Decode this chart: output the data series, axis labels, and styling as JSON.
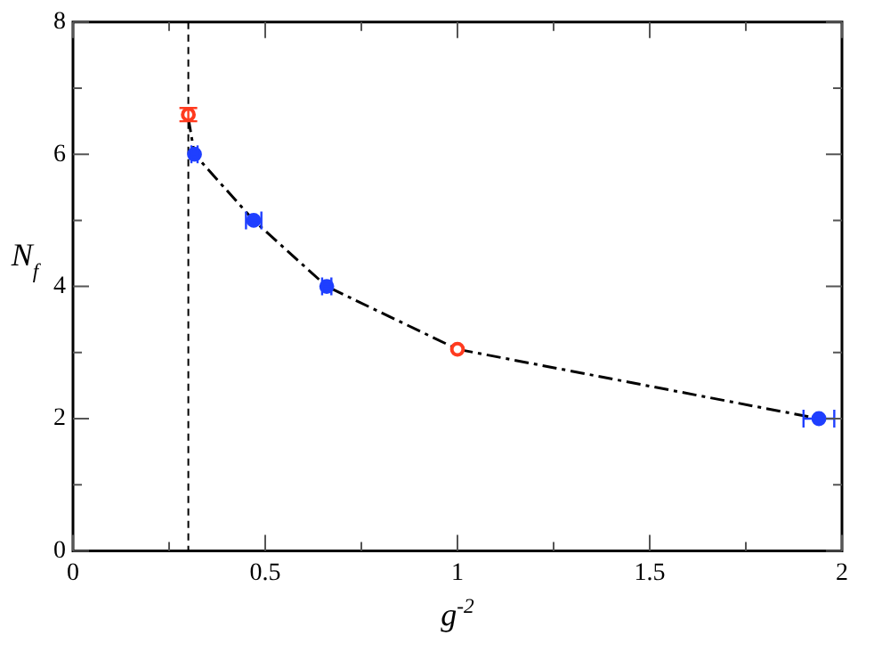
{
  "chart_data": {
    "type": "scatter",
    "xlabel": "g$^{-2}$",
    "ylabel": "N$_{f}$",
    "xlim": [
      0,
      2
    ],
    "ylim": [
      0,
      8
    ],
    "xticks": [
      0,
      {
        "value": 0.25,
        "label": null
      },
      0.5,
      {
        "value": 0.75,
        "label": null
      },
      1,
      {
        "value": 1.25,
        "label": null
      },
      1.5,
      {
        "value": 1.75,
        "label": null
      },
      2
    ],
    "yticks": [
      0,
      {
        "value": 1,
        "label": null
      },
      2,
      {
        "value": 3,
        "label": null
      },
      4,
      {
        "value": 5,
        "label": null
      },
      6,
      {
        "value": 7,
        "label": null
      },
      8
    ],
    "grid": false,
    "legend": false,
    "series": [
      {
        "type": "line",
        "color": "#000000",
        "x": [
          0.3,
          0.316,
          0.47,
          0.66,
          1.0,
          1.94
        ],
        "values": [
          6.55,
          6.0,
          5.0,
          4.0,
          3.05,
          2.0
        ],
        "marker": "none",
        "line_style": "dashed"
      },
      {
        "color": "#1f3fff",
        "x": [
          0.316,
          0.47,
          0.66,
          1.94
        ],
        "values": [
          6.0,
          5.0,
          4.0,
          2.0
        ],
        "xerrors": [
          0.008,
          0.02,
          0.012,
          0.04
        ],
        "marker": "circle"
      },
      {
        "color": "#ff3b1f",
        "x": [
          0.3,
          1.0
        ],
        "values": [
          6.6,
          3.05
        ],
        "errors": [
          0.1,
          null
        ],
        "marker": "circle"
      }
    ],
    "ref_lines": [
      {
        "axis": "x",
        "value": 0.3,
        "color": "#000000",
        "line_style": "dashed"
      }
    ]
  }
}
